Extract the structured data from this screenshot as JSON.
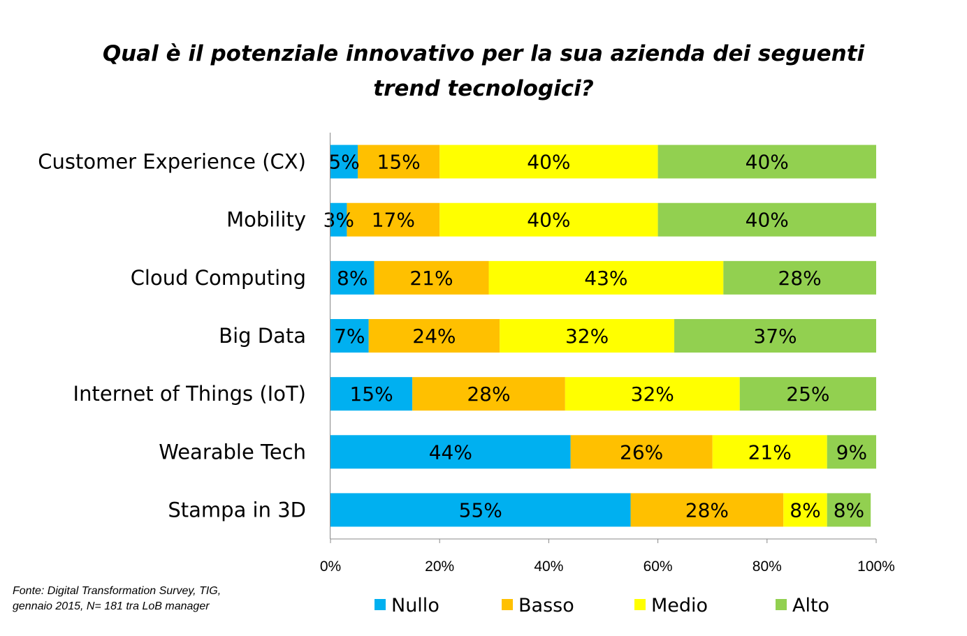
{
  "chart_data": {
    "type": "bar",
    "orientation": "horizontal",
    "stacked": true,
    "title_lines": [
      "Qual è il potenziale innovativo per la sua azienda dei seguenti",
      "trend tecnologici?"
    ],
    "categories": [
      "Customer Experience (CX)",
      "Mobility",
      "Cloud Computing",
      "Big Data",
      "Internet of Things (IoT)",
      "Wearable Tech",
      "Stampa in 3D"
    ],
    "series": [
      {
        "name": "Nullo",
        "color": "#00B0F0",
        "values": [
          5,
          3,
          8,
          7,
          15,
          44,
          55
        ],
        "labels": [
          "5%",
          "3%",
          "8%",
          "7%",
          "15%",
          "44%",
          "55%"
        ]
      },
      {
        "name": "Basso",
        "color": "#FFC000",
        "values": [
          15,
          17,
          21,
          24,
          28,
          26,
          28
        ],
        "labels": [
          "15%",
          "17%",
          "21%",
          "24%",
          "28%",
          "26%",
          "28%"
        ]
      },
      {
        "name": "Medio",
        "color": "#FFFF00",
        "values": [
          40,
          40,
          43,
          32,
          32,
          21,
          8
        ],
        "labels": [
          "40%",
          "40%",
          "43%",
          "32%",
          "32%",
          "21%",
          "8%"
        ]
      },
      {
        "name": "Alto",
        "color": "#92D050",
        "values": [
          40,
          40,
          28,
          37,
          25,
          9,
          8
        ],
        "labels": [
          "40%",
          "40%",
          "28%",
          "37%",
          "25%",
          "9%",
          "8%"
        ]
      }
    ],
    "xlim": [
      0,
      100
    ],
    "x_ticks": [
      "0%",
      "20%",
      "40%",
      "60%",
      "80%",
      "100%"
    ],
    "legend_position": "bottom"
  },
  "source_lines": [
    "Fonte: Digital Transformation Survey, TIG,",
    "gennaio 2015, N= 181 tra LoB manager"
  ]
}
